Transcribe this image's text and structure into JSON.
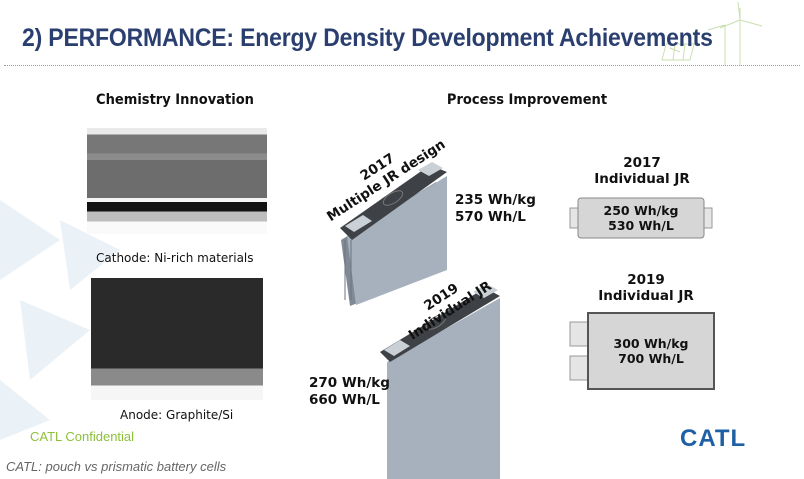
{
  "title": "2) PERFORMANCE: Energy Density Development Achievements",
  "chemistry": {
    "heading": "Chemistry Innovation",
    "cathode_caption": "Cathode: Ni-rich materials",
    "anode_caption": "Anode: Graphite/Si"
  },
  "process": {
    "heading": "Process Improvement",
    "prismatic_2017": {
      "year": "2017",
      "design": "Multiple JR design",
      "wh_kg": "235 Wh/kg",
      "wh_l": "570 Wh/L"
    },
    "prismatic_2019": {
      "year": "2019",
      "design": "Individual  JR",
      "wh_kg": "270 Wh/kg",
      "wh_l": "660 Wh/L"
    },
    "pouch_2017": {
      "year": "2017",
      "design": "Individual  JR",
      "wh_kg": "250 Wh/kg",
      "wh_l": "530 Wh/L"
    },
    "pouch_2019": {
      "year": "2019",
      "design": "Individual  JR",
      "wh_kg": "300 Wh/kg",
      "wh_l": "700 Wh/L"
    }
  },
  "footer": {
    "confidential": "CATL Confidential",
    "logo": "CATL"
  },
  "caption": "CATL: pouch vs prismatic battery cells",
  "colors": {
    "title": "#2a3f6f",
    "confidential": "#8dbf3a",
    "logo": "#1f5fa6"
  }
}
